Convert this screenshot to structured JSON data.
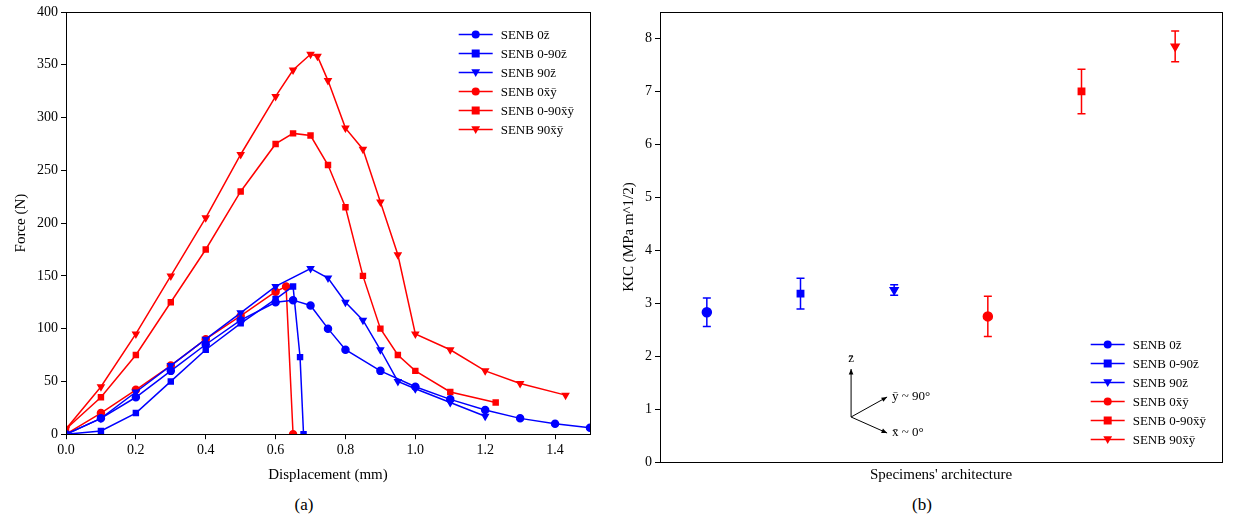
{
  "chart_data": [
    {
      "type": "line",
      "caption": "(a)",
      "x_label": "Displacement (mm)",
      "y_label": "Force (N)",
      "xlim": [
        0,
        1.5
      ],
      "xticks": [
        {
          "value": 0,
          "label": "0.0"
        },
        0.2,
        0.4,
        0.6,
        0.8,
        {
          "value": 1,
          "label": "1.0"
        },
        1.2,
        1.4
      ],
      "ylim": [
        0,
        400
      ],
      "yticks": [
        0,
        50,
        100,
        150,
        200,
        250,
        300,
        350,
        400
      ],
      "grid": false,
      "legend": "upper right",
      "series": [
        {
          "name": "SENB 0z̄",
          "color": "#0000ff",
          "marker": "circle",
          "line_style": "solid",
          "x": [
            0,
            0.1,
            0.2,
            0.3,
            0.4,
            0.5,
            0.6,
            0.65,
            0.7,
            0.75,
            0.8,
            0.9,
            1.0,
            1.1,
            1.2,
            1.3,
            1.4,
            1.5
          ],
          "values": [
            0,
            15,
            35,
            60,
            85,
            108,
            125,
            127,
            122,
            100,
            80,
            60,
            45,
            33,
            23,
            15,
            10,
            6
          ]
        },
        {
          "name": "SENB 0-90z̄",
          "color": "#0000ff",
          "marker": "square",
          "line_style": "solid",
          "x": [
            0,
            0.1,
            0.2,
            0.3,
            0.4,
            0.5,
            0.6,
            0.65,
            0.67,
            0.68
          ],
          "values": [
            0,
            3,
            20,
            50,
            80,
            105,
            128,
            140,
            73,
            0
          ]
        },
        {
          "name": "SENB 90z̄",
          "color": "#0000ff",
          "marker": "triangle_down",
          "line_style": "solid",
          "x": [
            0,
            0.1,
            0.2,
            0.3,
            0.4,
            0.5,
            0.6,
            0.7,
            0.75,
            0.8,
            0.85,
            0.9,
            0.95,
            1.0,
            1.1,
            1.2
          ],
          "values": [
            0,
            15,
            40,
            65,
            90,
            115,
            140,
            157,
            148,
            125,
            108,
            80,
            50,
            43,
            30,
            17
          ]
        },
        {
          "name": "SENB 0x̄ȳ",
          "color": "#ff0000",
          "marker": "circle",
          "line_style": "solid",
          "x": [
            0,
            0.1,
            0.2,
            0.3,
            0.4,
            0.5,
            0.6,
            0.63,
            0.65
          ],
          "values": [
            0,
            20,
            42,
            65,
            90,
            112,
            135,
            140,
            0
          ]
        },
        {
          "name": "SENB 0-90x̄ȳ",
          "color": "#ff0000",
          "marker": "square",
          "line_style": "solid",
          "x": [
            0,
            0.1,
            0.2,
            0.3,
            0.4,
            0.5,
            0.6,
            0.65,
            0.7,
            0.75,
            0.8,
            0.85,
            0.9,
            0.95,
            1.0,
            1.1,
            1.23
          ],
          "values": [
            5,
            35,
            75,
            125,
            175,
            230,
            275,
            285,
            283,
            255,
            215,
            150,
            100,
            75,
            60,
            40,
            30
          ]
        },
        {
          "name": "SENB 90x̄ȳ",
          "color": "#ff0000",
          "marker": "triangle_down",
          "line_style": "solid",
          "x": [
            0,
            0.1,
            0.2,
            0.3,
            0.4,
            0.5,
            0.6,
            0.65,
            0.7,
            0.72,
            0.75,
            0.8,
            0.85,
            0.9,
            0.95,
            1.0,
            1.1,
            1.2,
            1.3,
            1.43
          ],
          "values": [
            5,
            45,
            95,
            150,
            205,
            265,
            320,
            345,
            360,
            358,
            335,
            290,
            270,
            220,
            170,
            95,
            80,
            60,
            48,
            37
          ]
        }
      ]
    },
    {
      "type": "scatter",
      "caption": "(b)",
      "x_label": "Specimens' architecture",
      "y_label": "KIC (MPa m^1/2)",
      "annotations": [
        "z̄",
        "ȳ ~ 90°",
        "x̄ ~ 0°"
      ],
      "categories": [
        null,
        null,
        null,
        null,
        null,
        null
      ],
      "ylim": [
        0,
        8.5
      ],
      "yticks": [
        0,
        1,
        2,
        3,
        4,
        5,
        6,
        7,
        8
      ],
      "grid": false,
      "tick_labels": "y",
      "legend": "lower right",
      "series": [
        {
          "name": "SENB 0z̄",
          "color": "#0000ff",
          "marker": "circle",
          "values": [
            2.83,
            null,
            null,
            null,
            null,
            null
          ],
          "errors": [
            0.27,
            null,
            null,
            null,
            null,
            null
          ]
        },
        {
          "name": "SENB 0-90z̄",
          "color": "#0000ff",
          "marker": "square",
          "values": [
            null,
            3.18,
            null,
            null,
            null,
            null
          ],
          "errors": [
            null,
            0.29,
            null,
            null,
            null,
            null
          ]
        },
        {
          "name": "SENB 90z̄",
          "color": "#0000ff",
          "marker": "triangle_down",
          "values": [
            null,
            null,
            3.25,
            null,
            null,
            null
          ],
          "errors": [
            null,
            null,
            0.1,
            null,
            null,
            null
          ]
        },
        {
          "name": "SENB 0x̄ȳ",
          "color": "#ff0000",
          "marker": "circle",
          "values": [
            null,
            null,
            null,
            2.75,
            null,
            null
          ],
          "errors": [
            null,
            null,
            null,
            0.38,
            null,
            null
          ]
        },
        {
          "name": "SENB 0-90x̄ȳ",
          "color": "#ff0000",
          "marker": "square",
          "values": [
            null,
            null,
            null,
            null,
            7.0,
            null
          ],
          "errors": [
            null,
            null,
            null,
            null,
            0.42,
            null
          ]
        },
        {
          "name": "SENB 90x̄ȳ",
          "color": "#ff0000",
          "marker": "triangle_down",
          "values": [
            null,
            null,
            null,
            null,
            null,
            7.85
          ],
          "errors": [
            null,
            null,
            null,
            null,
            null,
            0.29
          ]
        }
      ]
    }
  ]
}
